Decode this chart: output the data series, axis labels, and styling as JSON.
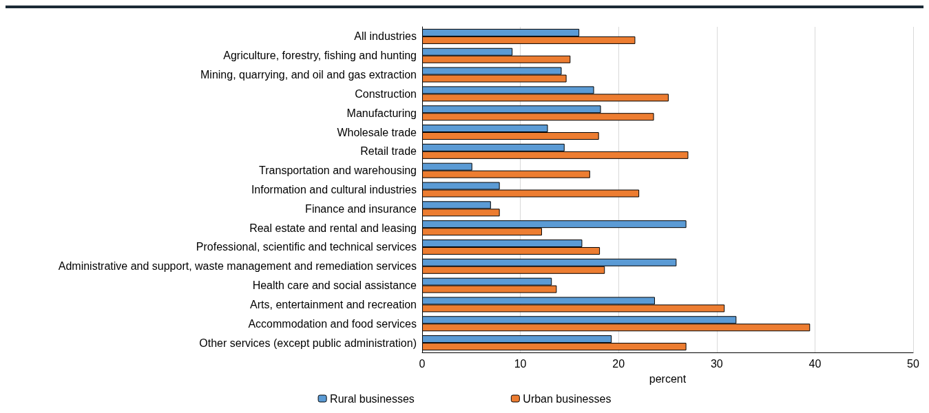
{
  "chart_data": {
    "type": "bar",
    "orientation": "horizontal",
    "xlabel": "percent",
    "categories": [
      "All industries",
      "Agriculture, forestry, fishing and hunting",
      "Mining, quarrying, and oil and gas extraction",
      "Construction",
      "Manufacturing",
      "Wholesale trade",
      "Retail trade",
      "Transportation and warehousing",
      "Information and cultural industries",
      "Finance and insurance",
      "Real estate and rental and leasing",
      "Professional, scientific and technical services",
      "Administrative and support, waste management and remediation services",
      "Health care and social assistance",
      "Arts, entertainment and recreation",
      "Accommodation and food services",
      "Other services (except public administration)"
    ],
    "series": [
      {
        "name": "Rural businesses",
        "color": "#5b9bd5",
        "values": [
          16.0,
          9.2,
          14.2,
          17.5,
          18.2,
          12.8,
          14.5,
          5.1,
          7.9,
          7.0,
          26.9,
          16.3,
          25.9,
          13.2,
          23.7,
          32.0,
          19.3
        ]
      },
      {
        "name": "Urban businesses",
        "color": "#ed7d31",
        "values": [
          21.7,
          15.1,
          14.7,
          25.1,
          23.6,
          18.0,
          27.1,
          17.1,
          22.1,
          7.9,
          12.2,
          18.1,
          18.6,
          13.7,
          30.8,
          39.5,
          26.9
        ]
      }
    ],
    "xlim": [
      0,
      50
    ],
    "xticks": [
      0,
      10,
      20,
      30,
      40,
      50
    ],
    "grid": "x",
    "legend": "bottom"
  }
}
